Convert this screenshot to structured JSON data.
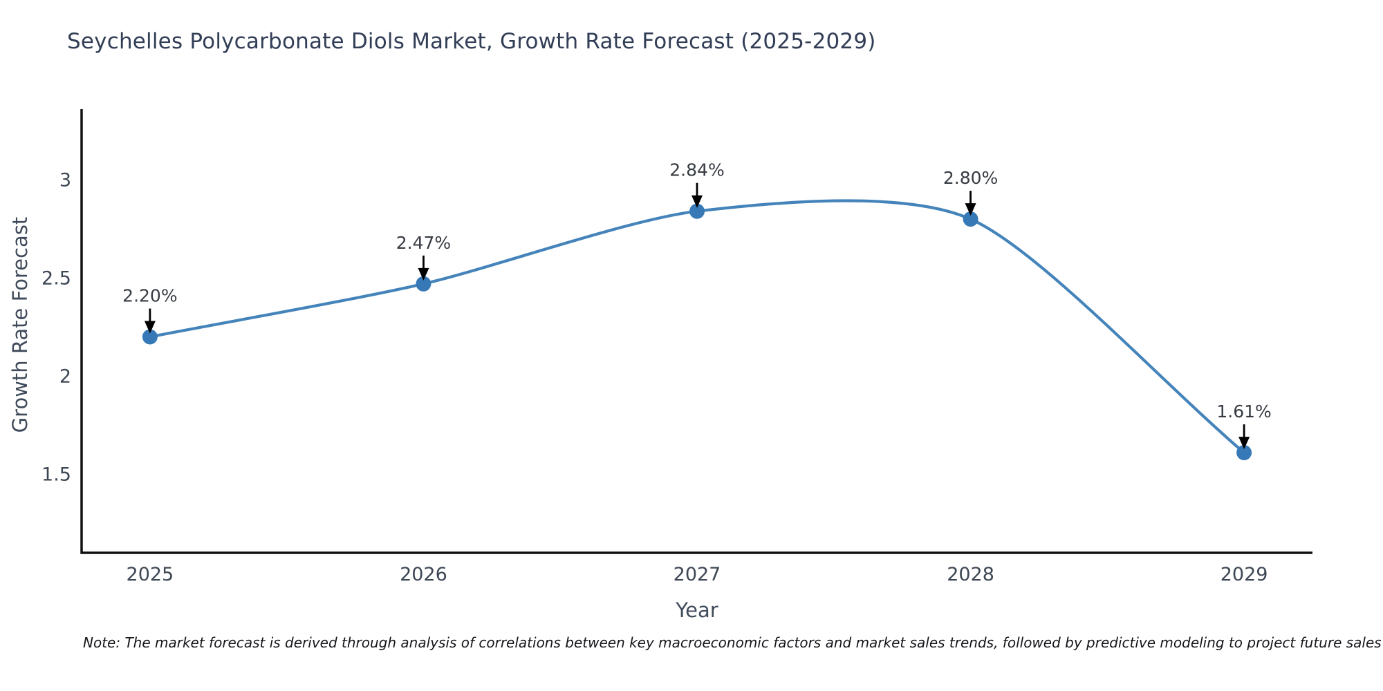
{
  "title": "Seychelles Polycarbonate Diols Market, Growth Rate Forecast (2025-2029)",
  "note": "Note: The market forecast is derived through analysis of correlations between key macroeconomic factors and market sales trends, followed by predictive modeling to project future sales",
  "chart_data": {
    "type": "line",
    "title": "Seychelles Polycarbonate Diols Market, Growth Rate Forecast (2025-2029)",
    "xlabel": "Year",
    "ylabel": "Growth Rate Forecast",
    "x": [
      2025,
      2026,
      2027,
      2028,
      2029
    ],
    "values": [
      2.2,
      2.47,
      2.84,
      2.8,
      1.61
    ],
    "point_labels": [
      "2.20%",
      "2.47%",
      "2.84%",
      "2.80%",
      "1.61%"
    ],
    "xticks": [
      2025,
      2026,
      2027,
      2028,
      2029
    ],
    "xtick_labels": [
      "2025",
      "2026",
      "2027",
      "2028",
      "2029"
    ],
    "yticks": [
      1.5,
      2,
      2.5,
      3
    ],
    "ytick_labels": [
      "1.5",
      "2",
      "2.5",
      "3"
    ],
    "xlim": [
      2024.75,
      2029.25
    ],
    "ylim": [
      1.1,
      3.36
    ],
    "grid": false,
    "legend": "none",
    "smooth": true,
    "annotations_arrowed": true,
    "line_color": "#4484ba",
    "marker_color": "#3779b7",
    "axis_color": "#111111",
    "arrow_color": "#000000"
  }
}
